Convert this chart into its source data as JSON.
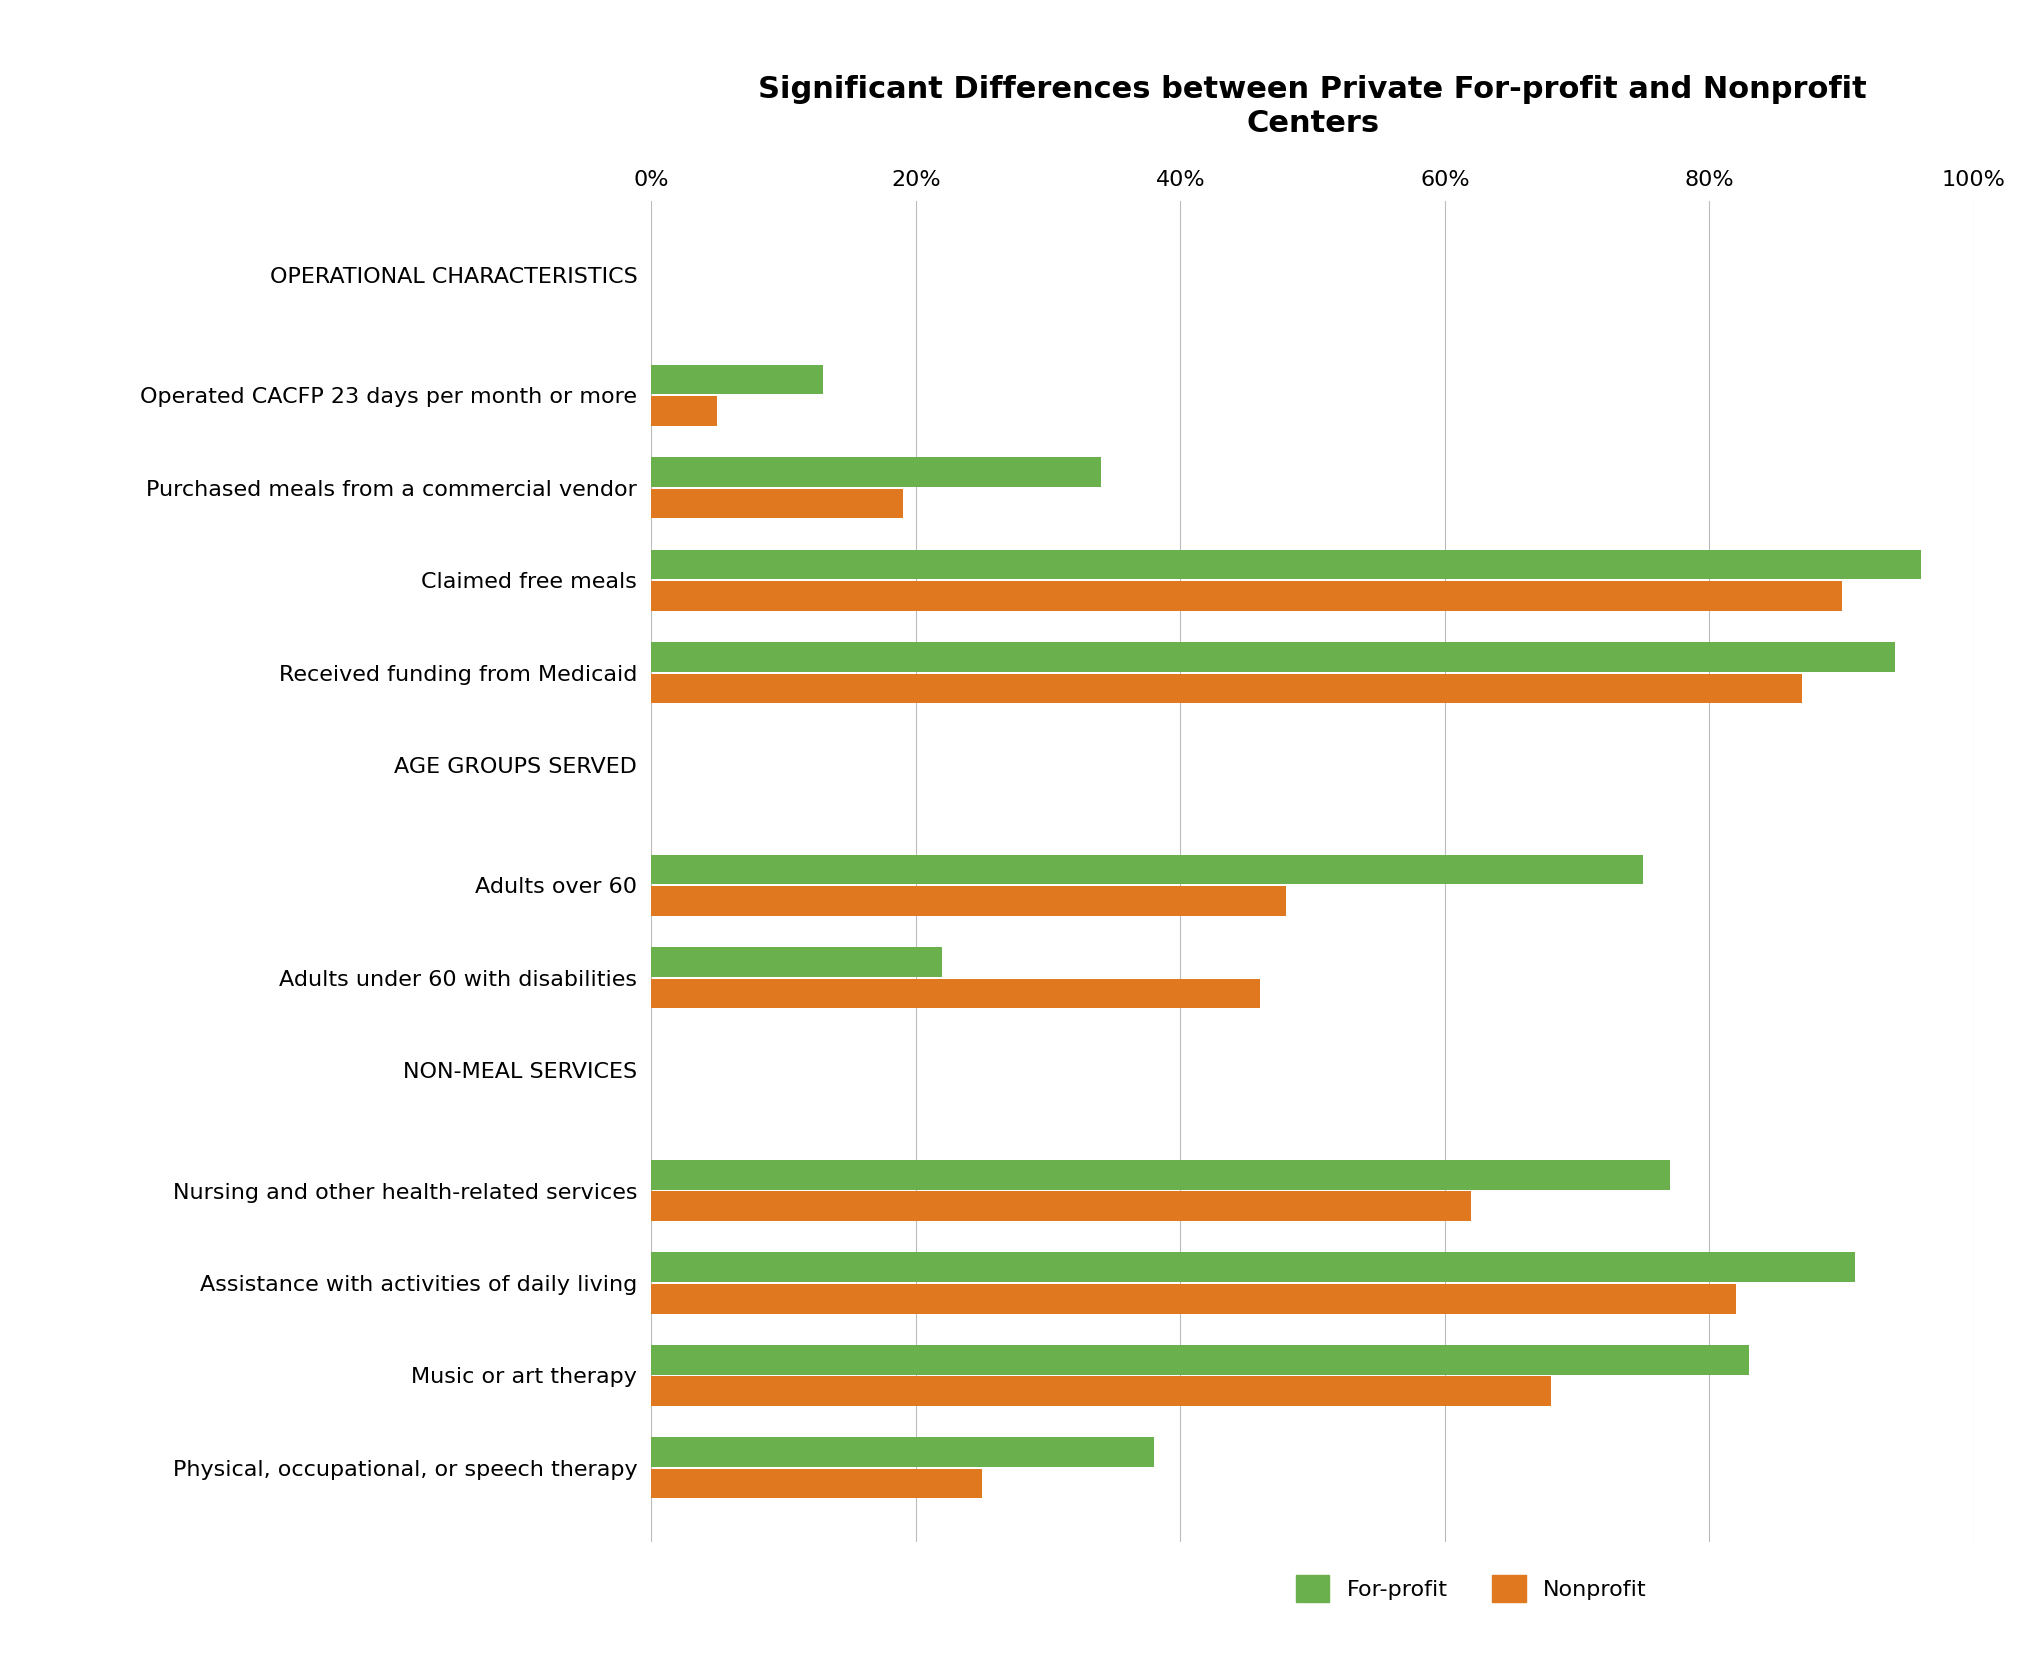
{
  "title": "Significant Differences between Private For-profit and Nonprofit\nCenters",
  "title_fontsize": 22,
  "xlabel_ticks": [
    "0%",
    "20%",
    "40%",
    "60%",
    "80%",
    "100%"
  ],
  "xlim": [
    0,
    100
  ],
  "bar_color_forprofit": "#6ab04c",
  "bar_color_nonprofit": "#e07820",
  "legend_labels": [
    "For-profit",
    "Nonprofit"
  ],
  "categories": [
    "OPERATIONAL CHARACTERISTICS",
    "Operated CACFP 23 days per month or more",
    "Purchased meals from a commercial vendor",
    "Claimed free meals",
    "Received funding from Medicaid",
    "AGE GROUPS SERVED",
    "Adults over 60",
    "Adults under 60 with disabilities",
    "NON-MEAL SERVICES",
    "Nursing and other health-related services",
    "Assistance with activities of daily living",
    "Music or art therapy",
    "Physical, occupational, or speech therapy"
  ],
  "header_rows": [
    0,
    5,
    8
  ],
  "forprofit": [
    null,
    13,
    34,
    96,
    94,
    null,
    75,
    22,
    null,
    77,
    91,
    83,
    38
  ],
  "nonprofit": [
    null,
    5,
    19,
    90,
    87,
    null,
    48,
    46,
    null,
    62,
    82,
    68,
    25
  ]
}
